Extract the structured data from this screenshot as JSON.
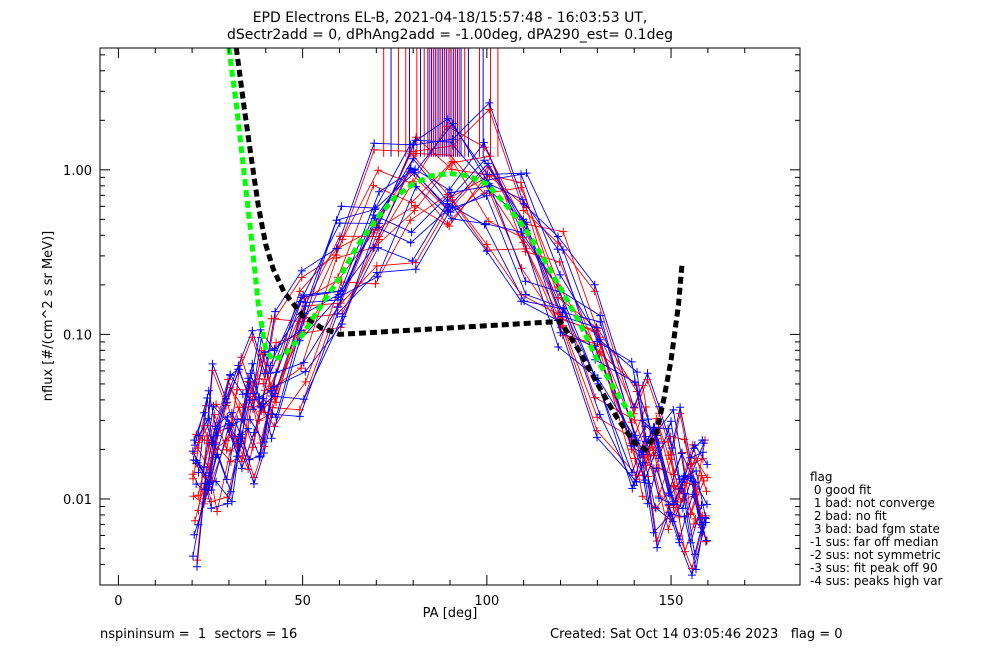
{
  "title_line1": "EPD Electrons EL-B, 2021-04-18/15:57:48 - 16:03:53 UT,",
  "title_line2": "dSectr2add = 0, dPhAng2add = -1.00deg, dPA290_est=   0.1deg",
  "footer_left": "nspininsum =  1  sectors = 16",
  "footer_right": "Created: Sat Oct 14 03:05:46 2023   flag = 0",
  "legend": {
    "title": "flag",
    "items": [
      " 0 good fit",
      " 1 bad: not converge",
      " 2 bad: no fit",
      " 3 bad: bad fgm state",
      "-1 sus: far off median",
      "-2 sus: not symmetric",
      "-3 sus: fit peak off 90",
      "-4 sus: peaks high var"
    ]
  },
  "colors": {
    "red": "#ff0000",
    "blue": "#0000ff",
    "green": "#00ff00",
    "black": "#000000"
  },
  "chart_data": {
    "type": "line",
    "xlabel": "PA [deg]",
    "ylabel": "nflux [#/(cm^2 s sr MeV)]",
    "xlim": [
      -5,
      185
    ],
    "ylim": [
      0.003,
      5.5
    ],
    "yscale": "log",
    "xticks": [
      0,
      50,
      100,
      150
    ],
    "xtick_labels": [
      "0",
      "50",
      "100",
      "150"
    ],
    "yticks": [
      0.01,
      0.1,
      1.0
    ],
    "ytick_labels": [
      "0.01",
      "0.10",
      "1.00"
    ],
    "red_profile_offsets": [
      0.0,
      0.08,
      -0.05,
      0.15,
      -0.12,
      0.22,
      -0.2,
      0.05,
      0.3,
      -0.28,
      0.12,
      -0.08
    ],
    "blue_profile_offsets": [
      0.02,
      -0.1,
      0.18,
      -0.15,
      0.1,
      -0.25,
      0.26,
      -0.04,
      0.34,
      -0.32,
      0.2,
      0.06,
      -0.18
    ],
    "profile_template": {
      "pa": [
        21,
        24,
        26,
        30,
        33,
        36,
        39,
        42,
        50,
        60,
        70,
        80,
        90,
        100,
        110,
        120,
        130,
        140,
        143,
        146,
        150,
        153,
        156,
        159
      ],
      "nflux": [
        0.012,
        0.018,
        0.02,
        0.025,
        0.03,
        0.035,
        0.04,
        0.05,
        0.1,
        0.22,
        0.45,
        0.75,
        0.85,
        0.78,
        0.4,
        0.17,
        0.07,
        0.025,
        0.02,
        0.016,
        0.013,
        0.011,
        0.01,
        0.01
      ]
    },
    "red_vlines_pa": [
      72,
      76,
      78,
      81,
      83,
      84.5,
      85.5,
      86.5,
      87.5,
      88.5,
      89.5,
      90.5,
      91.5,
      92.5,
      94,
      98,
      101,
      103
    ],
    "blue_vlines_pa": [
      74,
      79,
      82,
      84,
      85,
      86,
      87,
      88,
      89,
      90,
      91,
      92,
      93,
      95,
      99
    ],
    "green_fit": {
      "pa": [
        30,
        32,
        34,
        36,
        38,
        40,
        42,
        45,
        50,
        55,
        60,
        65,
        70,
        75,
        80,
        85,
        90,
        95,
        100,
        105,
        110,
        115,
        120,
        125,
        130,
        135,
        140
      ],
      "nflux": [
        5.5,
        2.5,
        1.0,
        0.4,
        0.15,
        0.08,
        0.07,
        0.075,
        0.1,
        0.15,
        0.22,
        0.35,
        0.5,
        0.68,
        0.82,
        0.92,
        0.95,
        0.92,
        0.82,
        0.62,
        0.45,
        0.3,
        0.19,
        0.12,
        0.07,
        0.045,
        0.03
      ]
    },
    "black_fit": {
      "pa": [
        32,
        34,
        36,
        38,
        40,
        42,
        45,
        50,
        55,
        60,
        120,
        125,
        130,
        135,
        140,
        143,
        146,
        148,
        150,
        152,
        153
      ],
      "nflux": [
        5.5,
        2.5,
        1.2,
        0.6,
        0.35,
        0.25,
        0.18,
        0.13,
        0.11,
        0.1,
        0.12,
        0.08,
        0.05,
        0.032,
        0.022,
        0.02,
        0.025,
        0.04,
        0.07,
        0.15,
        0.27
      ]
    }
  }
}
